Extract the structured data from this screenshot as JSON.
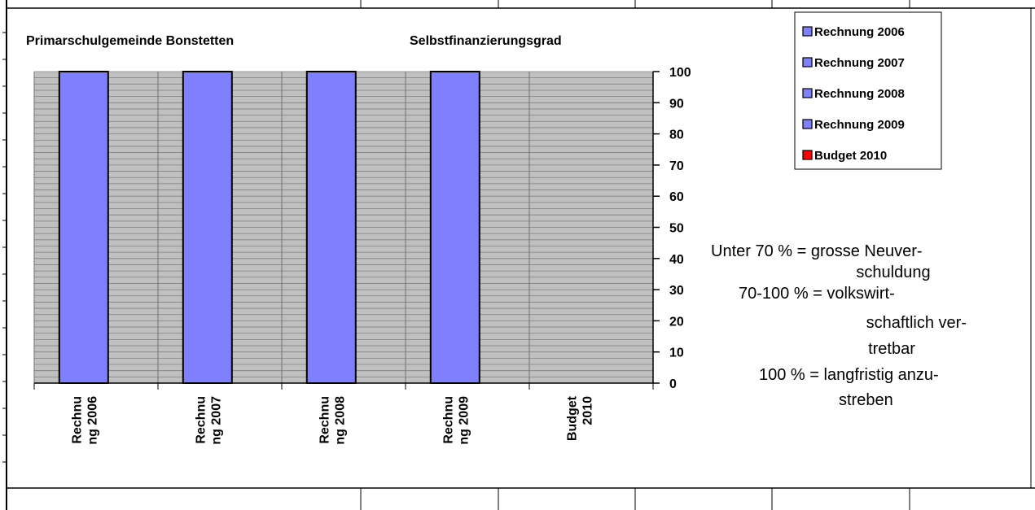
{
  "header": {
    "organisation": "Primarschulgemeinde Bonstetten",
    "title": "Selbstfinanzierungsgrad"
  },
  "chart_data": {
    "type": "bar",
    "title": "Selbstfinanzierungsgrad",
    "categories": [
      [
        "Rechnu",
        "ng 2006"
      ],
      [
        "Rechnu",
        "ng 2007"
      ],
      [
        "Rechnu",
        "ng 2008"
      ],
      [
        "Rechnu",
        "ng 2009"
      ],
      [
        "Budget",
        "2010"
      ]
    ],
    "values": [
      100,
      100,
      100,
      100,
      0
    ],
    "ylim": [
      0,
      100
    ],
    "yticks": [
      "100",
      "90",
      "80",
      "70",
      "60",
      "50",
      "40",
      "30",
      "20",
      "10",
      "0"
    ],
    "y_axis_side": "right",
    "grid": true,
    "legend_position": "top-right",
    "legend": [
      {
        "label": "Rechnung 2006",
        "color": "#8080ff"
      },
      {
        "label": "Rechnung 2007",
        "color": "#8080ff"
      },
      {
        "label": "Rechnung 2008",
        "color": "#8080ff"
      },
      {
        "label": "Rechnung 2009",
        "color": "#8080ff"
      },
      {
        "label": "Budget 2010",
        "color": "#ff0000"
      }
    ],
    "colors": {
      "bar": "#8080ff",
      "plot_background": "#c0c0c0",
      "gridline": "#808080",
      "axis": "#000000"
    }
  },
  "annotation": {
    "lines": [
      "Unter 70 % = grosse Neuver-",
      "schuldung",
      "70-100 % = volkswirt-",
      "schaftlich ver-",
      "tretbar",
      "100 % = langfristig anzu-",
      "streben"
    ]
  }
}
